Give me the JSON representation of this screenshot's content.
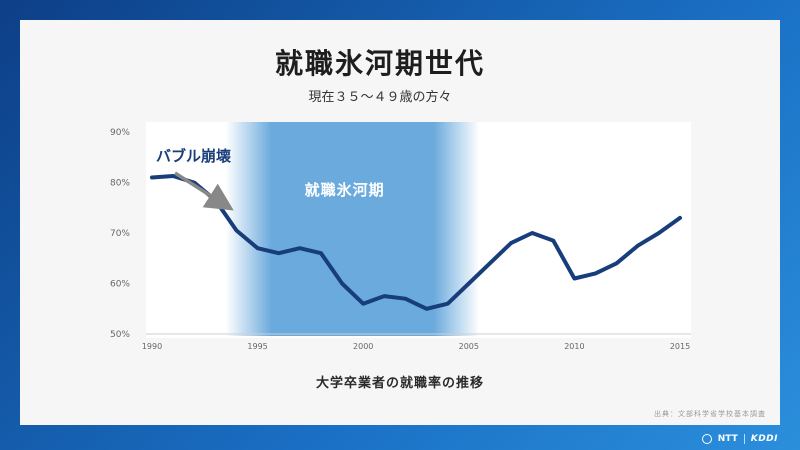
{
  "header": {
    "title": "就職氷河期世代",
    "subtitle": "現在３５～４９歳の方々"
  },
  "chart_data": {
    "type": "line",
    "x": [
      1990,
      1991,
      1992,
      1993,
      1994,
      1995,
      1996,
      1997,
      1998,
      1999,
      2000,
      2001,
      2002,
      2003,
      2004,
      2005,
      2006,
      2007,
      2008,
      2009,
      2010,
      2011,
      2012,
      2013,
      2014,
      2015
    ],
    "series": [
      {
        "values": [
          81,
          81.3,
          80,
          76.5,
          70.5,
          67,
          66,
          67,
          66,
          60,
          56,
          57.5,
          57,
          55,
          56,
          60,
          64,
          68,
          70,
          68.5,
          61,
          62,
          64,
          67.5,
          70,
          73
        ],
        "color": "#173d7a"
      }
    ],
    "xticks": [
      1990,
      1995,
      2000,
      2005,
      2010,
      2015
    ],
    "yticks": [
      "50%",
      "60%",
      "70%",
      "80%",
      "90%"
    ],
    "ytick_values": [
      50,
      60,
      70,
      80,
      90
    ],
    "xlim": [
      1990,
      2015
    ],
    "ylim": [
      50,
      92
    ],
    "grid": false,
    "band": {
      "label": "就職氷河期",
      "start": 1993.5,
      "end": 2005.5,
      "color": "#3a8ed2"
    },
    "annotation": {
      "label": "バブル崩壊",
      "color": "#1a3e7a",
      "arrow_color": "#888888"
    }
  },
  "caption": "大学卒業者の就職率の推移",
  "source": "出典：文部科学省学校基本調査",
  "footer": {
    "ntt": "NTT",
    "kddi": "KDDI"
  }
}
